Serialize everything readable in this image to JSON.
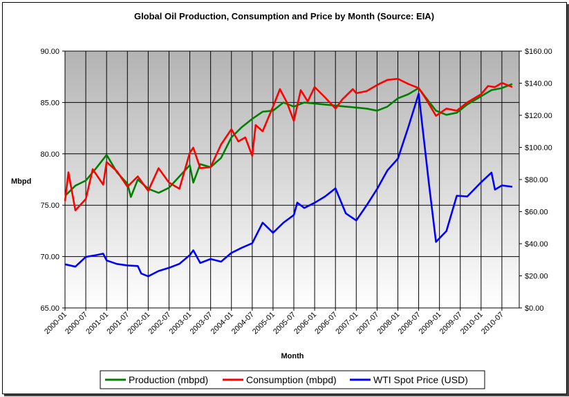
{
  "chart_data": {
    "type": "line",
    "title": "Global Oil Production, Consumption and Price by Month (Source: EIA)",
    "xlabel": "Month",
    "ylabel": "Mbpd",
    "y2label": "",
    "ylim": [
      65,
      90
    ],
    "y2lim": [
      0,
      160
    ],
    "grid": true,
    "legend_position": "bottom",
    "x_ticks": [
      "2000-01",
      "2000-07",
      "2001-01",
      "2001-07",
      "2002-01",
      "2002-07",
      "2003-01",
      "2003-07",
      "2004-01",
      "2004-07",
      "2005-01",
      "2005-07",
      "2006-01",
      "2006-07",
      "2007-01",
      "2007-07",
      "2008-01",
      "2008-07",
      "2009-01",
      "2009-07",
      "2010-01",
      "2010-07"
    ],
    "y_ticks": [
      "65.00",
      "70.00",
      "75.00",
      "80.00",
      "85.00",
      "90.00"
    ],
    "y2_ticks": [
      "$0.00",
      "$20.00",
      "$40.00",
      "$60.00",
      "$80.00",
      "$100.00",
      "$120.00",
      "$140.00",
      "$160.00"
    ],
    "series": [
      {
        "name": "Production (mbpd)",
        "axis": "left",
        "color": "#008000",
        "points": [
          [
            "2000-01",
            75.9
          ],
          [
            "2000-04",
            76.9
          ],
          [
            "2000-07",
            77.4
          ],
          [
            "2000-10",
            78.6
          ],
          [
            "2001-01",
            79.9
          ],
          [
            "2001-04",
            78.2
          ],
          [
            "2001-07",
            77.1
          ],
          [
            "2001-08",
            75.8
          ],
          [
            "2001-10",
            77.5
          ],
          [
            "2002-01",
            76.6
          ],
          [
            "2002-04",
            76.2
          ],
          [
            "2002-07",
            76.7
          ],
          [
            "2002-10",
            77.8
          ],
          [
            "2003-01",
            78.9
          ],
          [
            "2003-02",
            77.2
          ],
          [
            "2003-04",
            79.0
          ],
          [
            "2003-07",
            78.7
          ],
          [
            "2003-10",
            79.6
          ],
          [
            "2004-01",
            81.6
          ],
          [
            "2004-04",
            82.6
          ],
          [
            "2004-07",
            83.4
          ],
          [
            "2004-10",
            84.1
          ],
          [
            "2005-01",
            84.2
          ],
          [
            "2005-04",
            85.0
          ],
          [
            "2005-07",
            84.6
          ],
          [
            "2005-10",
            85.0
          ],
          [
            "2006-01",
            84.9
          ],
          [
            "2006-04",
            84.8
          ],
          [
            "2006-07",
            84.7
          ],
          [
            "2006-10",
            84.6
          ],
          [
            "2007-01",
            84.5
          ],
          [
            "2007-04",
            84.4
          ],
          [
            "2007-07",
            84.2
          ],
          [
            "2007-10",
            84.6
          ],
          [
            "2008-01",
            85.4
          ],
          [
            "2008-04",
            85.8
          ],
          [
            "2008-07",
            86.4
          ],
          [
            "2008-09",
            85.5
          ],
          [
            "2008-12",
            84.2
          ],
          [
            "2009-03",
            83.8
          ],
          [
            "2009-06",
            84.0
          ],
          [
            "2009-09",
            84.8
          ],
          [
            "2010-01",
            85.6
          ],
          [
            "2010-04",
            86.2
          ],
          [
            "2010-07",
            86.4
          ],
          [
            "2010-10",
            86.8
          ]
        ]
      },
      {
        "name": "Consumption (mbpd)",
        "axis": "left",
        "color": "#FF0000",
        "points": [
          [
            "2000-01",
            75.4
          ],
          [
            "2000-02",
            78.2
          ],
          [
            "2000-04",
            74.5
          ],
          [
            "2000-07",
            75.6
          ],
          [
            "2000-09",
            78.5
          ],
          [
            "2000-12",
            77.0
          ],
          [
            "2001-01",
            79.2
          ],
          [
            "2001-04",
            78.3
          ],
          [
            "2001-07",
            76.8
          ],
          [
            "2001-10",
            77.8
          ],
          [
            "2002-01",
            76.4
          ],
          [
            "2002-04",
            78.6
          ],
          [
            "2002-07",
            77.2
          ],
          [
            "2002-10",
            76.6
          ],
          [
            "2003-01",
            80.1
          ],
          [
            "2003-02",
            80.6
          ],
          [
            "2003-04",
            78.6
          ],
          [
            "2003-07",
            78.7
          ],
          [
            "2003-10",
            80.9
          ],
          [
            "2004-01",
            82.4
          ],
          [
            "2004-03",
            81.2
          ],
          [
            "2004-05",
            81.6
          ],
          [
            "2004-07",
            79.8
          ],
          [
            "2004-08",
            82.8
          ],
          [
            "2004-10",
            82.2
          ],
          [
            "2005-01",
            84.6
          ],
          [
            "2005-03",
            86.3
          ],
          [
            "2005-05",
            85.0
          ],
          [
            "2005-07",
            83.2
          ],
          [
            "2005-09",
            86.2
          ],
          [
            "2005-11",
            85.1
          ],
          [
            "2006-01",
            86.5
          ],
          [
            "2006-04",
            85.5
          ],
          [
            "2006-07",
            84.4
          ],
          [
            "2006-09",
            85.3
          ],
          [
            "2006-12",
            86.3
          ],
          [
            "2007-01",
            85.9
          ],
          [
            "2007-04",
            86.1
          ],
          [
            "2007-07",
            86.7
          ],
          [
            "2007-10",
            87.2
          ],
          [
            "2008-01",
            87.3
          ],
          [
            "2008-04",
            86.8
          ],
          [
            "2008-07",
            86.4
          ],
          [
            "2008-09",
            85.4
          ],
          [
            "2008-12",
            83.7
          ],
          [
            "2009-03",
            84.4
          ],
          [
            "2009-06",
            84.2
          ],
          [
            "2009-09",
            85.0
          ],
          [
            "2010-01",
            85.8
          ],
          [
            "2010-03",
            86.6
          ],
          [
            "2010-05",
            86.5
          ],
          [
            "2010-07",
            86.9
          ],
          [
            "2010-10",
            86.5
          ]
        ]
      },
      {
        "name": "WTI Spot Price (USD)",
        "axis": "right",
        "color": "#0000FF",
        "points": [
          [
            "2000-01",
            27.2
          ],
          [
            "2000-04",
            25.7
          ],
          [
            "2000-07",
            31.8
          ],
          [
            "2000-10",
            32.9
          ],
          [
            "2000-12",
            33.8
          ],
          [
            "2001-01",
            29.6
          ],
          [
            "2001-04",
            27.4
          ],
          [
            "2001-07",
            26.5
          ],
          [
            "2001-10",
            26.1
          ],
          [
            "2001-11",
            21.4
          ],
          [
            "2002-01",
            19.7
          ],
          [
            "2002-04",
            23.0
          ],
          [
            "2002-07",
            25.0
          ],
          [
            "2002-10",
            27.5
          ],
          [
            "2003-01",
            32.9
          ],
          [
            "2003-02",
            35.9
          ],
          [
            "2003-04",
            28.0
          ],
          [
            "2003-07",
            30.5
          ],
          [
            "2003-10",
            28.8
          ],
          [
            "2004-01",
            34.3
          ],
          [
            "2004-04",
            37.5
          ],
          [
            "2004-07",
            40.3
          ],
          [
            "2004-10",
            53.1
          ],
          [
            "2005-01",
            46.8
          ],
          [
            "2005-04",
            53.1
          ],
          [
            "2005-07",
            57.9
          ],
          [
            "2005-08",
            65.6
          ],
          [
            "2005-10",
            62.3
          ],
          [
            "2006-01",
            65.5
          ],
          [
            "2006-04",
            69.4
          ],
          [
            "2006-07",
            74.5
          ],
          [
            "2006-10",
            58.9
          ],
          [
            "2007-01",
            54.5
          ],
          [
            "2007-04",
            63.9
          ],
          [
            "2007-07",
            74.1
          ],
          [
            "2007-10",
            85.7
          ],
          [
            "2008-01",
            93.0
          ],
          [
            "2008-04",
            112.5
          ],
          [
            "2008-07",
            133.4
          ],
          [
            "2008-10",
            76.7
          ],
          [
            "2008-12",
            41.1
          ],
          [
            "2009-03",
            47.9
          ],
          [
            "2009-06",
            69.9
          ],
          [
            "2009-09",
            69.4
          ],
          [
            "2010-01",
            78.3
          ],
          [
            "2010-04",
            84.3
          ],
          [
            "2010-05",
            73.7
          ],
          [
            "2010-07",
            76.3
          ],
          [
            "2010-10",
            75.5
          ]
        ]
      }
    ]
  }
}
